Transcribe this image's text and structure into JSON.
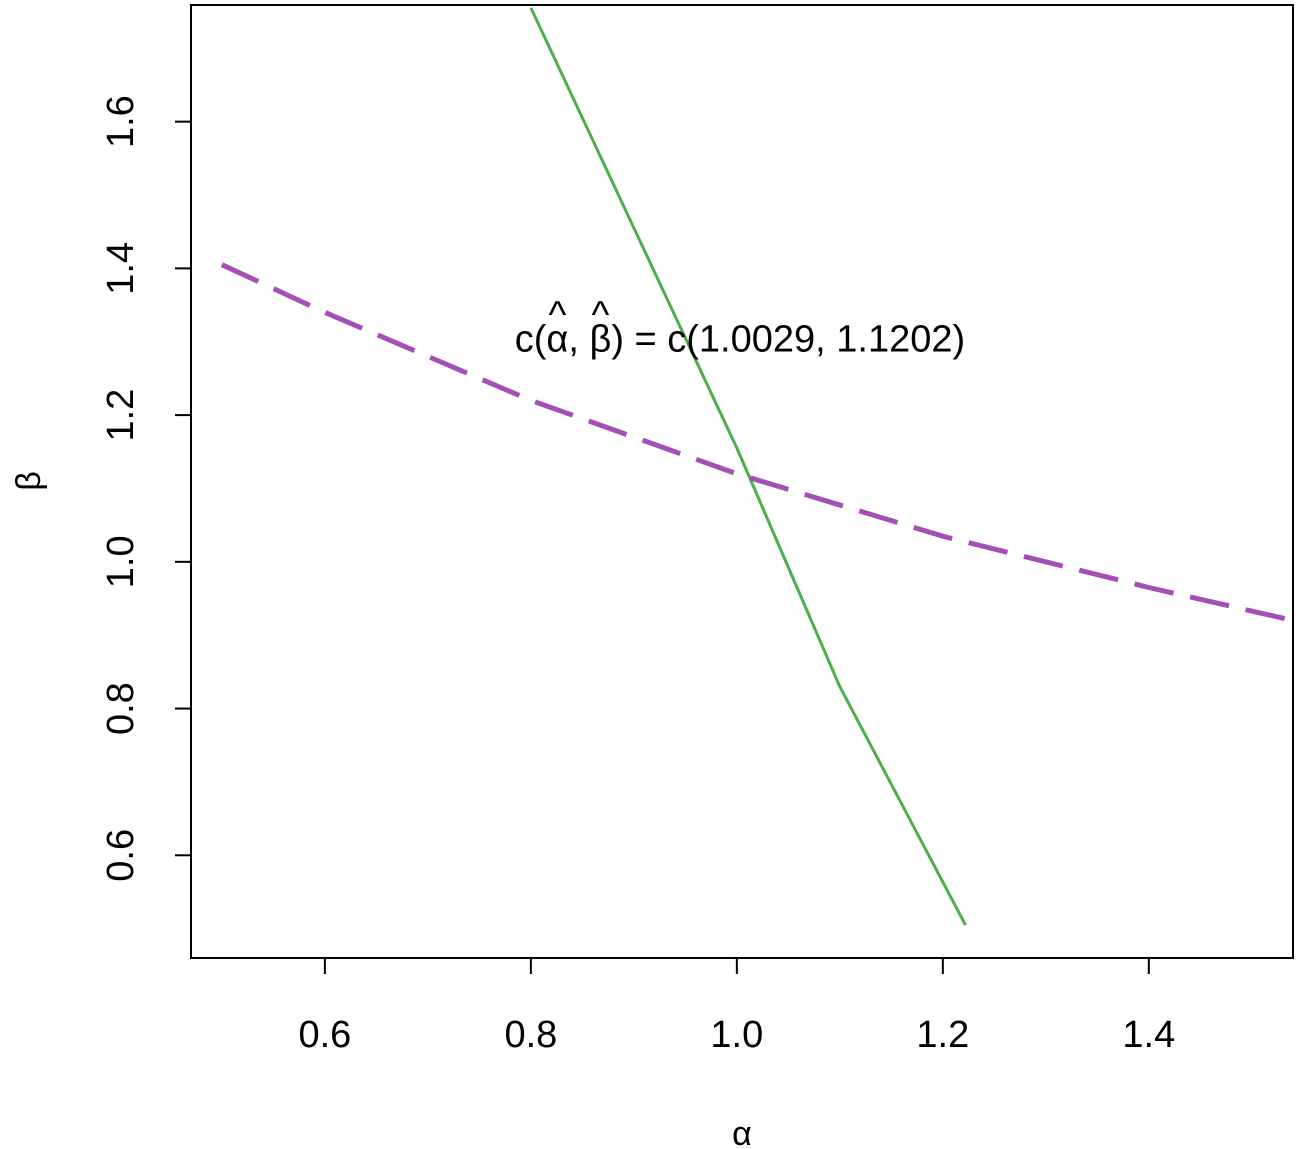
{
  "chart_data": {
    "type": "line",
    "xlabel": "α",
    "ylabel": "β",
    "xlim": [
      0.47,
      1.54
    ],
    "ylim": [
      0.46,
      1.759
    ],
    "x_ticks": [
      0.6,
      0.8,
      1.0,
      1.2,
      1.4
    ],
    "x_tick_labels": [
      "0.6",
      "0.8",
      "1.0",
      "1.2",
      "1.4"
    ],
    "y_ticks": [
      0.6,
      0.8,
      1.0,
      1.2,
      1.4,
      1.6
    ],
    "y_tick_labels": [
      "0.6",
      "0.8",
      "1.0",
      "1.2",
      "1.4",
      "1.6"
    ],
    "grid": false,
    "series": [
      {
        "color": "#4DAF4A",
        "line_style": "solid",
        "x": [
          0.8,
          0.9,
          1.0,
          1.1,
          1.222
        ],
        "y": [
          1.755,
          1.455,
          1.155,
          0.83,
          0.505
        ]
      },
      {
        "color": "#A34FB5",
        "line_style": "dashed",
        "x": [
          0.5,
          0.6,
          0.8,
          1.0,
          1.2,
          1.4,
          1.54
        ],
        "y": [
          1.405,
          1.34,
          1.22,
          1.12,
          1.035,
          0.965,
          0.92
        ]
      }
    ],
    "annotation": {
      "text_prefix": "c(",
      "alpha_hat": "α",
      "separator": ", ",
      "beta_hat": "β",
      "text_suffix": ") = c(1.0029, 1.1202)",
      "hat_mark": "^",
      "x": 1.003,
      "y": 1.287
    }
  }
}
